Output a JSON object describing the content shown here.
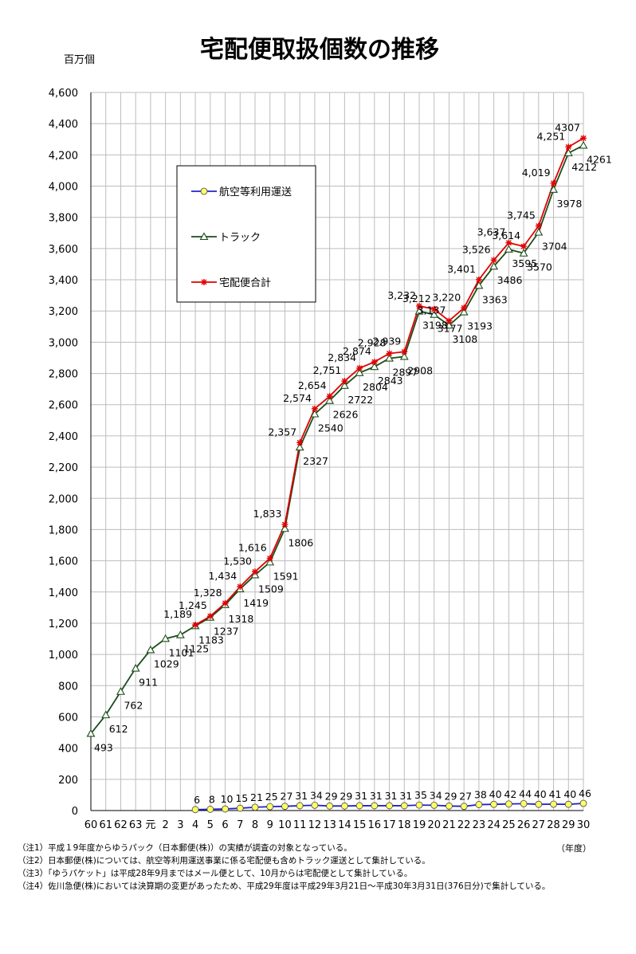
{
  "chart_data": {
    "type": "line",
    "title": "宅配便取扱個数の推移",
    "ylabel": "百万個",
    "xlabel": "（年度）",
    "ylim": [
      0,
      4600
    ],
    "yticks": [
      0,
      200,
      400,
      600,
      800,
      1000,
      1200,
      1400,
      1600,
      1800,
      2000,
      2200,
      2400,
      2600,
      2800,
      3000,
      3200,
      3400,
      3600,
      3800,
      4000,
      4200,
      4400,
      4600
    ],
    "ytick_labels": [
      "0",
      "200",
      "400",
      "600",
      "800",
      "1,000",
      "1,200",
      "1,400",
      "1,600",
      "1,800",
      "2,000",
      "2,200",
      "2,400",
      "2,600",
      "2,800",
      "3,000",
      "3,200",
      "3,400",
      "3,600",
      "3,800",
      "4,000",
      "4,200",
      "4,400",
      "4,600"
    ],
    "categories": [
      "60",
      "61",
      "62",
      "63",
      "元",
      "2",
      "3",
      "4",
      "5",
      "6",
      "7",
      "8",
      "9",
      "10",
      "11",
      "12",
      "13",
      "14",
      "15",
      "16",
      "17",
      "18",
      "19",
      "20",
      "21",
      "22",
      "23",
      "24",
      "25",
      "26",
      "27",
      "28",
      "29",
      "30"
    ],
    "grid": true,
    "legend_position": "upper-left",
    "series": [
      {
        "name": "航空等利用運送",
        "color": "#2222cc",
        "marker": "circle",
        "marker_color": "#ffff66",
        "values": [
          null,
          null,
          null,
          null,
          null,
          null,
          null,
          6,
          8,
          10,
          15,
          21,
          25,
          27,
          31,
          34,
          29,
          29,
          31,
          31,
          31,
          31,
          35,
          34,
          29,
          27,
          38,
          40,
          42,
          44,
          40,
          41,
          40,
          46
        ],
        "labels": [
          null,
          null,
          null,
          null,
          null,
          null,
          null,
          "6",
          "8",
          "10",
          "15",
          "21",
          "25",
          "27",
          "31",
          "34",
          "29",
          "29",
          "31",
          "31",
          "31",
          "31",
          "35",
          "34",
          "29",
          "27",
          "38",
          "40",
          "42",
          "44",
          "40",
          "41",
          "40",
          "46"
        ]
      },
      {
        "name": "トラック",
        "color": "#1a4d1a",
        "marker": "triangle",
        "values": [
          493,
          612,
          762,
          911,
          1029,
          1101,
          1125,
          1183,
          1237,
          1318,
          1419,
          1509,
          1591,
          1806,
          2327,
          2540,
          2626,
          2722,
          2804,
          2843,
          2897,
          2908,
          3198,
          3177,
          3108,
          3193,
          3363,
          3486,
          3595,
          3570,
          3704,
          3978,
          4212,
          4261
        ],
        "labels": [
          "493",
          "612",
          "762",
          "911",
          "1029",
          "1101",
          "1125",
          "1183",
          "1237",
          "1318",
          "1419",
          "1509",
          "1591",
          "1806",
          "2327",
          "2540",
          "2626",
          "2722",
          "2804",
          "2843",
          "2897",
          "2908",
          "3198",
          "3177",
          "3108",
          "3193",
          "3363",
          "3486",
          "3595",
          "3570",
          "3704",
          "3978",
          "4212",
          "4261"
        ]
      },
      {
        "name": "宅配便合計",
        "color": "#e00000",
        "marker": "asterisk",
        "values": [
          null,
          null,
          null,
          null,
          null,
          null,
          null,
          1189,
          1245,
          1328,
          1434,
          1530,
          1616,
          1833,
          2357,
          2574,
          2654,
          2751,
          2834,
          2874,
          2928,
          2939,
          3232,
          3212,
          3137,
          3220,
          3401,
          3526,
          3637,
          3614,
          3745,
          4019,
          4251,
          4307
        ],
        "labels": [
          null,
          null,
          null,
          null,
          null,
          null,
          null,
          "1,189",
          "1,245",
          "1,328",
          "1,434",
          "1,530",
          "1,616",
          "1,833",
          "2,357",
          "2,574",
          "2,654",
          "2,751",
          "2,834",
          "2,874",
          "2,928",
          "2,939",
          "3,232",
          "3,212",
          "3,137",
          "3,220",
          "3,401",
          "3,526",
          "3,637",
          "3,614",
          "3,745",
          "4,019",
          "4,251",
          "4307"
        ]
      }
    ]
  },
  "notes": [
    "（注1）平成１9年度からゆうパック（日本郵便(株)）の実績が調査の対象となっている。",
    "（注2）日本郵便(株)については、航空等利用運送事業に係る宅配便も含めトラック運送として集計している。",
    "（注3）「ゆうパケット」は平成28年9月まではメール便として、10月からは宅配便として集計している。",
    "（注4）佐川急便(株)においては決算期の変更があったため、平成29年度は平成29年3月21日～平成30年3月31日(376日分)で集計している。"
  ]
}
